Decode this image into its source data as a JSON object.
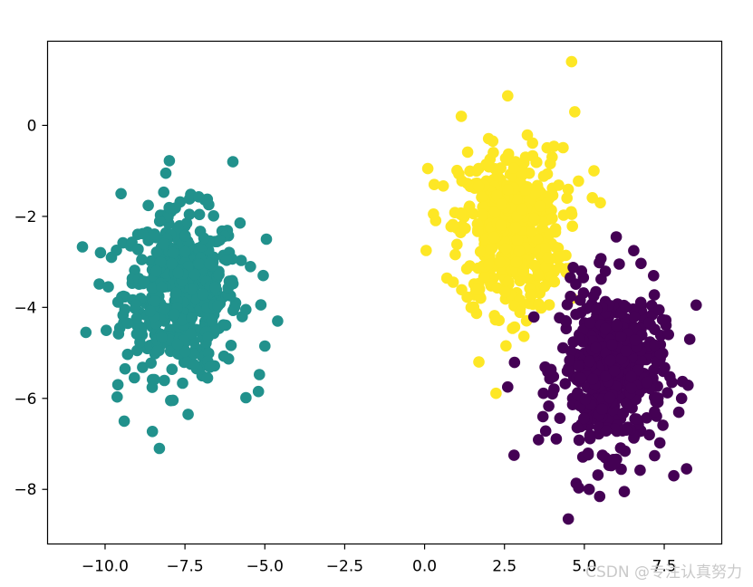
{
  "watermark": "CSDN @专注认真努力",
  "chart_data": {
    "type": "scatter",
    "title": "",
    "xlabel": "",
    "ylabel": "",
    "xlim": [
      -11.8,
      9.3
    ],
    "ylim": [
      -9.2,
      1.85
    ],
    "xticks": [
      -10.0,
      -7.5,
      -5.0,
      -2.5,
      0.0,
      2.5,
      5.0,
      7.5
    ],
    "xtick_labels": [
      "−10.0",
      "−7.5",
      "−5.0",
      "−2.5",
      "0.0",
      "2.5",
      "5.0",
      "7.5"
    ],
    "yticks": [
      0,
      -2,
      -4,
      -6,
      -8
    ],
    "ytick_labels": [
      "0",
      "−2",
      "−4",
      "−6",
      "−8"
    ],
    "grid": false,
    "legend": "none",
    "series": [
      {
        "color": "#21918c",
        "center": [
          -7.6,
          -3.7
        ],
        "std": [
          1.05,
          1.05
        ],
        "count": 500,
        "points": [
          [
            -10.6,
            -4.55
          ],
          [
            -8.3,
            -7.1
          ],
          [
            -6.0,
            -0.8
          ],
          [
            -8.1,
            -1.05
          ],
          [
            -9.5,
            -1.5
          ],
          [
            -9.4,
            -6.5
          ],
          [
            -4.6,
            -4.3
          ],
          [
            -5.2,
            -5.85
          ],
          [
            -5.0,
            -4.85
          ],
          [
            -4.95,
            -2.5
          ],
          [
            -5.05,
            -3.3
          ],
          [
            -7.4,
            -6.35
          ],
          [
            -9.8,
            -2.9
          ],
          [
            -9.9,
            -3.55
          ],
          [
            -9.6,
            -5.7
          ]
        ]
      },
      {
        "color": "#fde725",
        "center": [
          2.7,
          -2.3
        ],
        "std": [
          0.95,
          1.05
        ],
        "count": 500,
        "points": [
          [
            4.6,
            1.4
          ],
          [
            1.15,
            0.2
          ],
          [
            4.7,
            0.3
          ],
          [
            2.6,
            0.65
          ],
          [
            0.05,
            -2.75
          ],
          [
            0.1,
            -0.95
          ],
          [
            1.7,
            -5.2
          ],
          [
            5.5,
            -1.7
          ],
          [
            5.3,
            -1.0
          ],
          [
            0.3,
            -1.3
          ]
        ]
      },
      {
        "color": "#440154",
        "center": [
          5.85,
          -5.35
        ],
        "std": [
          0.95,
          1.05
        ],
        "count": 500,
        "points": [
          [
            4.5,
            -8.65
          ],
          [
            2.8,
            -7.25
          ],
          [
            8.5,
            -3.95
          ],
          [
            8.3,
            -4.7
          ],
          [
            8.2,
            -7.55
          ],
          [
            7.8,
            -7.7
          ],
          [
            2.6,
            -5.75
          ],
          [
            6.0,
            -2.45
          ],
          [
            5.15,
            -8.0
          ],
          [
            6.25,
            -8.05
          ],
          [
            4.0,
            -5.9
          ]
        ]
      }
    ]
  }
}
